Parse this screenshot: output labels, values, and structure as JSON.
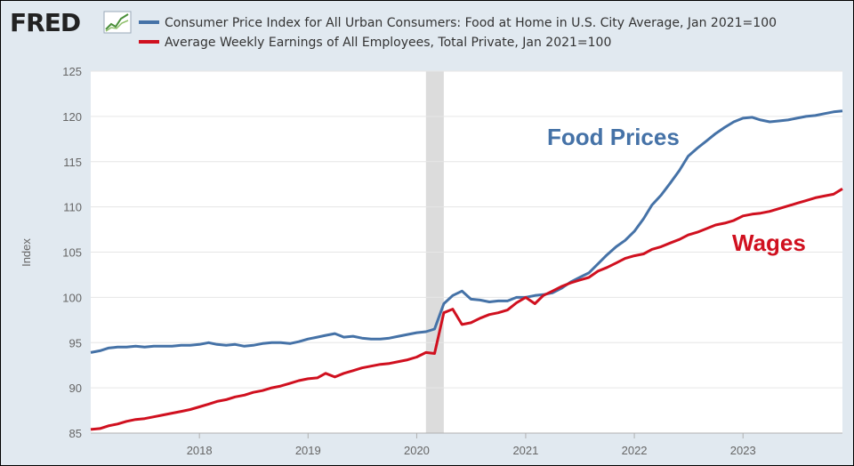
{
  "logo": {
    "text": "FRED",
    "icon": "line-graph-icon"
  },
  "colors": {
    "series1": "#4572a7",
    "series2": "#d0101f",
    "recession": "#dcdcdc",
    "plot_bg": "#ffffff",
    "frame_bg": "#e1e9f0"
  },
  "chart_data": {
    "type": "line",
    "ylabel": "Index",
    "ylim": [
      85,
      125
    ],
    "yticks": [
      85,
      90,
      95,
      100,
      105,
      110,
      115,
      120,
      125
    ],
    "xlim": [
      "2017-01-01",
      "2023-12-01"
    ],
    "xticks": [
      "2018",
      "2019",
      "2020",
      "2021",
      "2022",
      "2023"
    ],
    "grid": true,
    "legend_position": "top",
    "recession": {
      "start": "2020-02-01",
      "end": "2020-04-01"
    },
    "annotations": [
      {
        "text": "Food Prices",
        "series": "series1"
      },
      {
        "text": "Wages",
        "series": "series2"
      }
    ],
    "series": [
      {
        "name": "Consumer Price Index for All Urban Consumers: Food at Home in U.S. City Average, Jan 2021=100",
        "values": [
          93.9,
          94.1,
          94.4,
          94.5,
          94.5,
          94.6,
          94.5,
          94.6,
          94.6,
          94.6,
          94.7,
          94.7,
          94.8,
          95.0,
          94.8,
          94.7,
          94.8,
          94.6,
          94.7,
          94.9,
          95.0,
          95.0,
          94.9,
          95.1,
          95.4,
          95.6,
          95.8,
          96.0,
          95.6,
          95.7,
          95.5,
          95.4,
          95.4,
          95.5,
          95.7,
          95.9,
          96.1,
          96.2,
          96.5,
          99.3,
          100.2,
          100.7,
          99.8,
          99.7,
          99.5,
          99.6,
          99.6,
          100.0,
          100.0,
          100.2,
          100.3,
          100.5,
          101.0,
          101.7,
          102.2,
          102.7,
          103.7,
          104.7,
          105.6,
          106.3,
          107.3,
          108.7,
          110.2,
          111.3,
          112.6,
          114.0,
          115.6,
          116.5,
          117.3,
          118.1,
          118.8,
          119.4,
          119.8,
          119.9,
          119.6,
          119.4,
          119.5,
          119.6,
          119.8,
          120.0,
          120.1,
          120.3,
          120.5,
          120.6
        ]
      },
      {
        "name": "Average Weekly Earnings of All Employees, Total Private, Jan 2021=100",
        "values": [
          85.4,
          85.5,
          85.8,
          86.0,
          86.3,
          86.5,
          86.6,
          86.8,
          87.0,
          87.2,
          87.4,
          87.6,
          87.9,
          88.2,
          88.5,
          88.7,
          89.0,
          89.2,
          89.5,
          89.7,
          90.0,
          90.2,
          90.5,
          90.8,
          91.0,
          91.1,
          91.6,
          91.2,
          91.6,
          91.9,
          92.2,
          92.4,
          92.6,
          92.7,
          92.9,
          93.1,
          93.4,
          93.9,
          93.8,
          98.3,
          98.7,
          97.0,
          97.2,
          97.7,
          98.1,
          98.3,
          98.6,
          99.4,
          100.0,
          99.3,
          100.2,
          100.7,
          101.2,
          101.6,
          101.9,
          102.2,
          102.9,
          103.3,
          103.8,
          104.3,
          104.6,
          104.8,
          105.3,
          105.6,
          106.0,
          106.4,
          106.9,
          107.2,
          107.6,
          108.0,
          108.2,
          108.5,
          109.0,
          109.2,
          109.3,
          109.5,
          109.8,
          110.1,
          110.4,
          110.7,
          111.0,
          111.2,
          111.4,
          112.0
        ]
      }
    ]
  }
}
